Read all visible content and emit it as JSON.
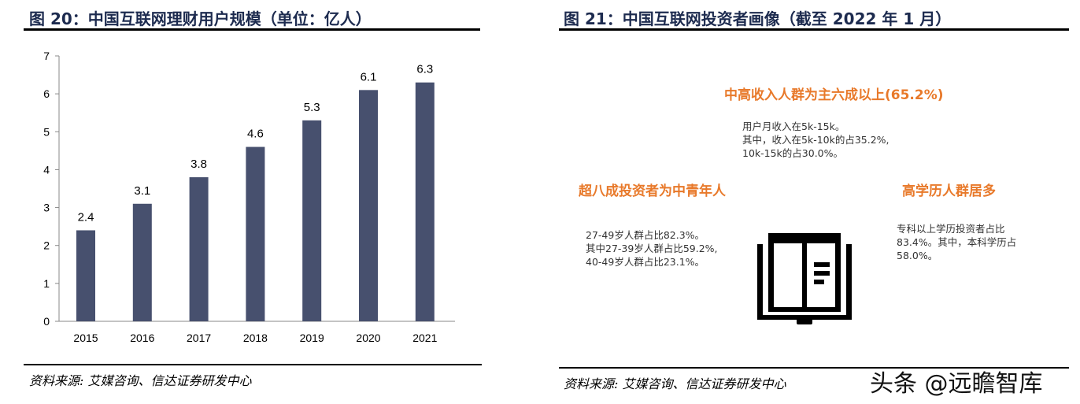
{
  "left": {
    "title": "图 20：中国互联网理财用户规模（单位：亿人）",
    "source": "资料来源: 艾媒咨询、信达证券研发中心"
  },
  "right": {
    "title": "图 21：中国互联网投资者画像（截至 2022 年 1 月）",
    "source": "资料来源: 艾媒咨询、信达证券研发中心",
    "income_heading": "中高收入人群为主六成以上(65.2%)",
    "income_text": "用户月收入在5k-15k。\n其中，收入在5k-10k的占35.2%,\n10k-15k的占30.0%。",
    "age_heading": "超八成投资者为中青年人",
    "age_text": "27-49岁人群占比82.3%。\n其中27-39岁人群占比59.2%,\n40-49岁人群占比23.1%。",
    "edu_heading": "高学历人群居多",
    "edu_text": "专科以上学历投资者占比\n83.4%。其中，本科学历占\n58.0%。",
    "icon": "book-icon",
    "accent_color": "#e8792a"
  },
  "watermark": "头条 @远瞻智库",
  "chart_data": {
    "type": "bar",
    "categories": [
      "2015",
      "2016",
      "2017",
      "2018",
      "2019",
      "2020",
      "2021"
    ],
    "values": [
      2.4,
      3.1,
      3.8,
      4.6,
      5.3,
      6.1,
      6.3
    ],
    "ylim": [
      0,
      7
    ],
    "yticks": [
      0,
      1,
      2,
      3,
      4,
      5,
      6,
      7
    ],
    "bar_color": "#47506e",
    "grid": false
  }
}
